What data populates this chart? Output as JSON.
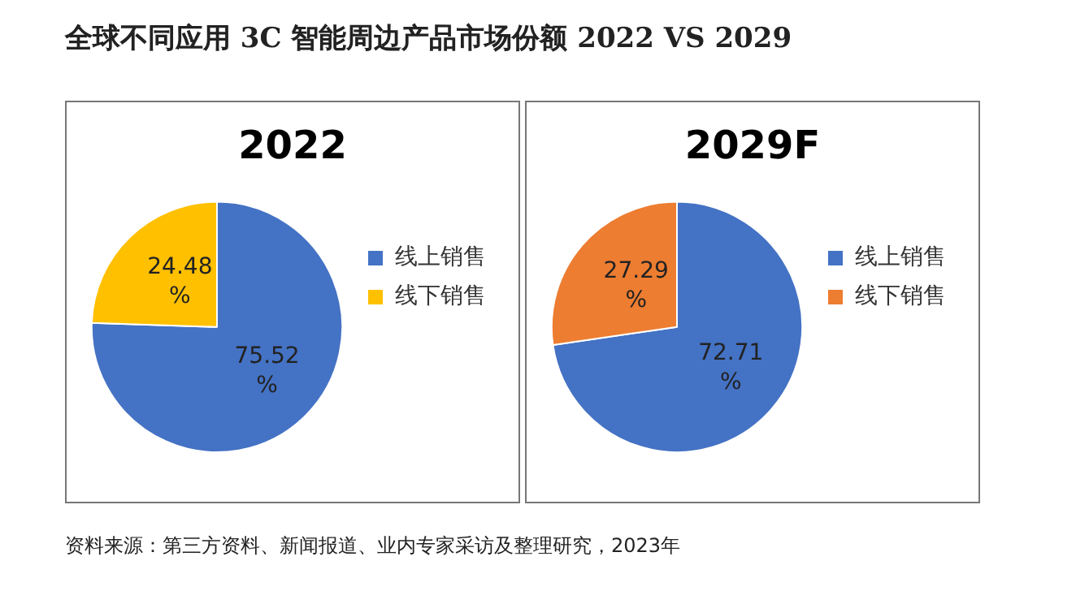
{
  "chart_data": [
    {
      "type": "other",
      "title": "全球不同应用 3C 智能周边产品市场份额 2022 VS 2029"
    },
    {
      "type": "pie",
      "title": "2022",
      "categories": [
        "线上销售",
        "线下销售"
      ],
      "values": [
        75.52,
        24.48
      ],
      "colors": [
        "#4472c4",
        "#ffc000"
      ],
      "value_labels": [
        "75.52%",
        "24.48%"
      ],
      "legend": "right"
    },
    {
      "type": "pie",
      "title": "2029F",
      "categories": [
        "线上销售",
        "线下销售"
      ],
      "values": [
        72.71,
        27.29
      ],
      "colors": [
        "#4472c4",
        "#ed7d31"
      ],
      "value_labels": [
        "72.71%",
        "27.29%"
      ],
      "legend": "right"
    },
    {
      "type": "other",
      "annotations": [
        "资料来源：第三方资料、新闻报道、业内专家采访及整理研究，2023年"
      ]
    }
  ]
}
